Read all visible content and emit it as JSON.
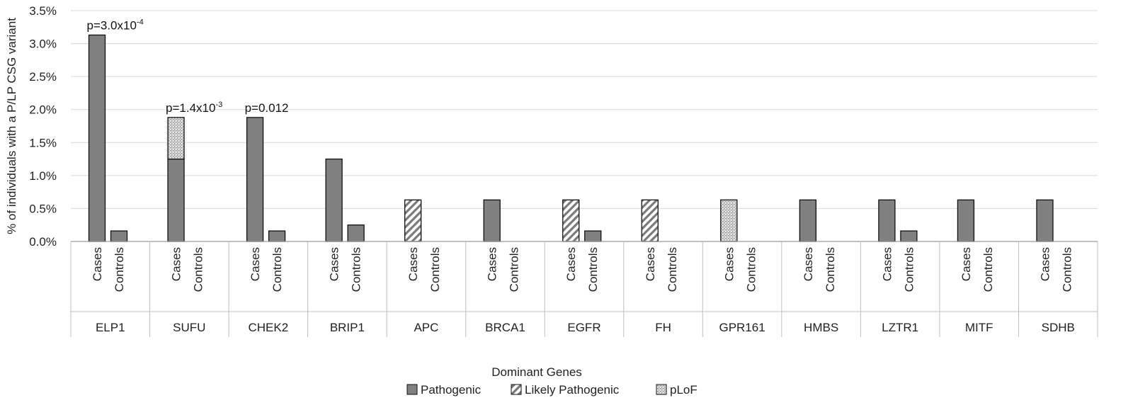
{
  "chart_data": {
    "type": "bar",
    "stacked": true,
    "xlabel": "Dominant Genes",
    "ylabel": "% of individuals with a P/LP CSG variant",
    "ylim": [
      0,
      3.5
    ],
    "yticks": [
      "0.0%",
      "0.5%",
      "1.0%",
      "1.5%",
      "2.0%",
      "2.5%",
      "3.0%",
      "3.5%"
    ],
    "sub_categories": [
      "Cases",
      "Controls"
    ],
    "genes": [
      "ELP1",
      "SUFU",
      "CHEK2",
      "BRIP1",
      "APC",
      "BRCA1",
      "EGFR",
      "FH",
      "GPR161",
      "HMBS",
      "LZTR1",
      "MITF",
      "SDHB"
    ],
    "series": [
      {
        "name": "Pathogenic",
        "pattern": "solid",
        "color": "#808080",
        "values": [
          [
            3.13,
            0.16
          ],
          [
            1.25,
            0.0
          ],
          [
            1.88,
            0.16
          ],
          [
            1.25,
            0.25
          ],
          [
            0.0,
            0.0
          ],
          [
            0.63,
            0.0
          ],
          [
            0.0,
            0.16
          ],
          [
            0.0,
            0.0
          ],
          [
            0.0,
            0.0
          ],
          [
            0.63,
            0.0
          ],
          [
            0.63,
            0.16
          ],
          [
            0.63,
            0.0
          ],
          [
            0.63,
            0.0
          ]
        ]
      },
      {
        "name": "Likely Pathogenic",
        "pattern": "diagonal",
        "color": "#7a7a7a",
        "values": [
          [
            0.0,
            0.0
          ],
          [
            0.0,
            0.0
          ],
          [
            0.0,
            0.0
          ],
          [
            0.0,
            0.0
          ],
          [
            0.63,
            0.0
          ],
          [
            0.0,
            0.0
          ],
          [
            0.63,
            0.0
          ],
          [
            0.63,
            0.0
          ],
          [
            0.0,
            0.0
          ],
          [
            0.0,
            0.0
          ],
          [
            0.0,
            0.0
          ],
          [
            0.0,
            0.0
          ],
          [
            0.0,
            0.0
          ]
        ]
      },
      {
        "name": "pLoF",
        "pattern": "crosshatch",
        "color": "#9a9a9a",
        "values": [
          [
            0.0,
            0.0
          ],
          [
            0.63,
            0.0
          ],
          [
            0.0,
            0.0
          ],
          [
            0.0,
            0.0
          ],
          [
            0.0,
            0.0
          ],
          [
            0.0,
            0.0
          ],
          [
            0.0,
            0.0
          ],
          [
            0.0,
            0.0
          ],
          [
            0.63,
            0.0
          ],
          [
            0.0,
            0.0
          ],
          [
            0.0,
            0.0
          ],
          [
            0.0,
            0.0
          ],
          [
            0.0,
            0.0
          ]
        ]
      }
    ],
    "annotations": [
      {
        "gene": "ELP1",
        "base": "p=3.0x10",
        "exp": "-4"
      },
      {
        "gene": "SUFU",
        "base": "p=1.4x10",
        "exp": "-3"
      },
      {
        "gene": "CHEK2",
        "base": "p=0.012",
        "exp": ""
      }
    ],
    "legend_position": "bottom-center",
    "grid": true
  }
}
